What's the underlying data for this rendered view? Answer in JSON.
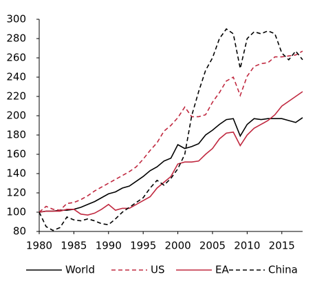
{
  "chart_data": {
    "type": "line",
    "x": [
      1980,
      1981,
      1982,
      1983,
      1984,
      1985,
      1986,
      1987,
      1988,
      1989,
      1990,
      1991,
      1992,
      1993,
      1994,
      1995,
      1996,
      1997,
      1998,
      1999,
      2000,
      2001,
      2002,
      2003,
      2004,
      2005,
      2006,
      2007,
      2008,
      2009,
      2010,
      2011,
      2012,
      2013,
      2014,
      2015,
      2016,
      2017,
      2018
    ],
    "series": [
      {
        "name": "World",
        "color": "#000000",
        "dash": false,
        "values": [
          100,
          101,
          101,
          102,
          102,
          103,
          105,
          108,
          111,
          115,
          119,
          121,
          125,
          127,
          132,
          137,
          143,
          147,
          153,
          156,
          170,
          166,
          168,
          171,
          180,
          185,
          191,
          196,
          197,
          179,
          191,
          197,
          196,
          197,
          197,
          197,
          195,
          193,
          198
        ]
      },
      {
        "name": "US",
        "color": "#c0283f",
        "dash": true,
        "values": [
          100,
          106,
          103,
          102,
          109,
          110,
          113,
          117,
          122,
          126,
          130,
          134,
          138,
          142,
          147,
          155,
          164,
          172,
          184,
          190,
          198,
          209,
          199,
          199,
          201,
          214,
          224,
          236,
          240,
          221,
          241,
          251,
          254,
          255,
          261,
          261,
          262,
          263,
          267
        ]
      },
      {
        "name": "EA",
        "color": "#c0283f",
        "dash": false,
        "values": [
          100,
          101,
          101,
          101,
          103,
          103,
          98,
          97,
          99,
          103,
          108,
          102,
          104,
          104,
          108,
          112,
          116,
          125,
          131,
          137,
          150,
          152,
          152,
          153,
          160,
          166,
          176,
          182,
          183,
          169,
          180,
          187,
          191,
          195,
          201,
          210,
          215,
          220,
          225
        ]
      },
      {
        "name": "China",
        "color": "#000000",
        "dash": true,
        "values": [
          100,
          85,
          81,
          84,
          95,
          92,
          91,
          93,
          91,
          88,
          87,
          93,
          100,
          105,
          110,
          115,
          125,
          133,
          128,
          135,
          145,
          160,
          200,
          225,
          247,
          260,
          280,
          290,
          285,
          249,
          280,
          287,
          285,
          288,
          285,
          265,
          258,
          267,
          258
        ]
      }
    ],
    "xlim": [
      1980,
      2018
    ],
    "xticks": [
      1980,
      1985,
      1990,
      1995,
      2000,
      2005,
      2010,
      2015
    ],
    "ylim": [
      80,
      300
    ],
    "yticks": [
      80,
      100,
      120,
      140,
      160,
      180,
      200,
      220,
      240,
      260,
      280,
      300
    ],
    "legend": "bottom"
  }
}
